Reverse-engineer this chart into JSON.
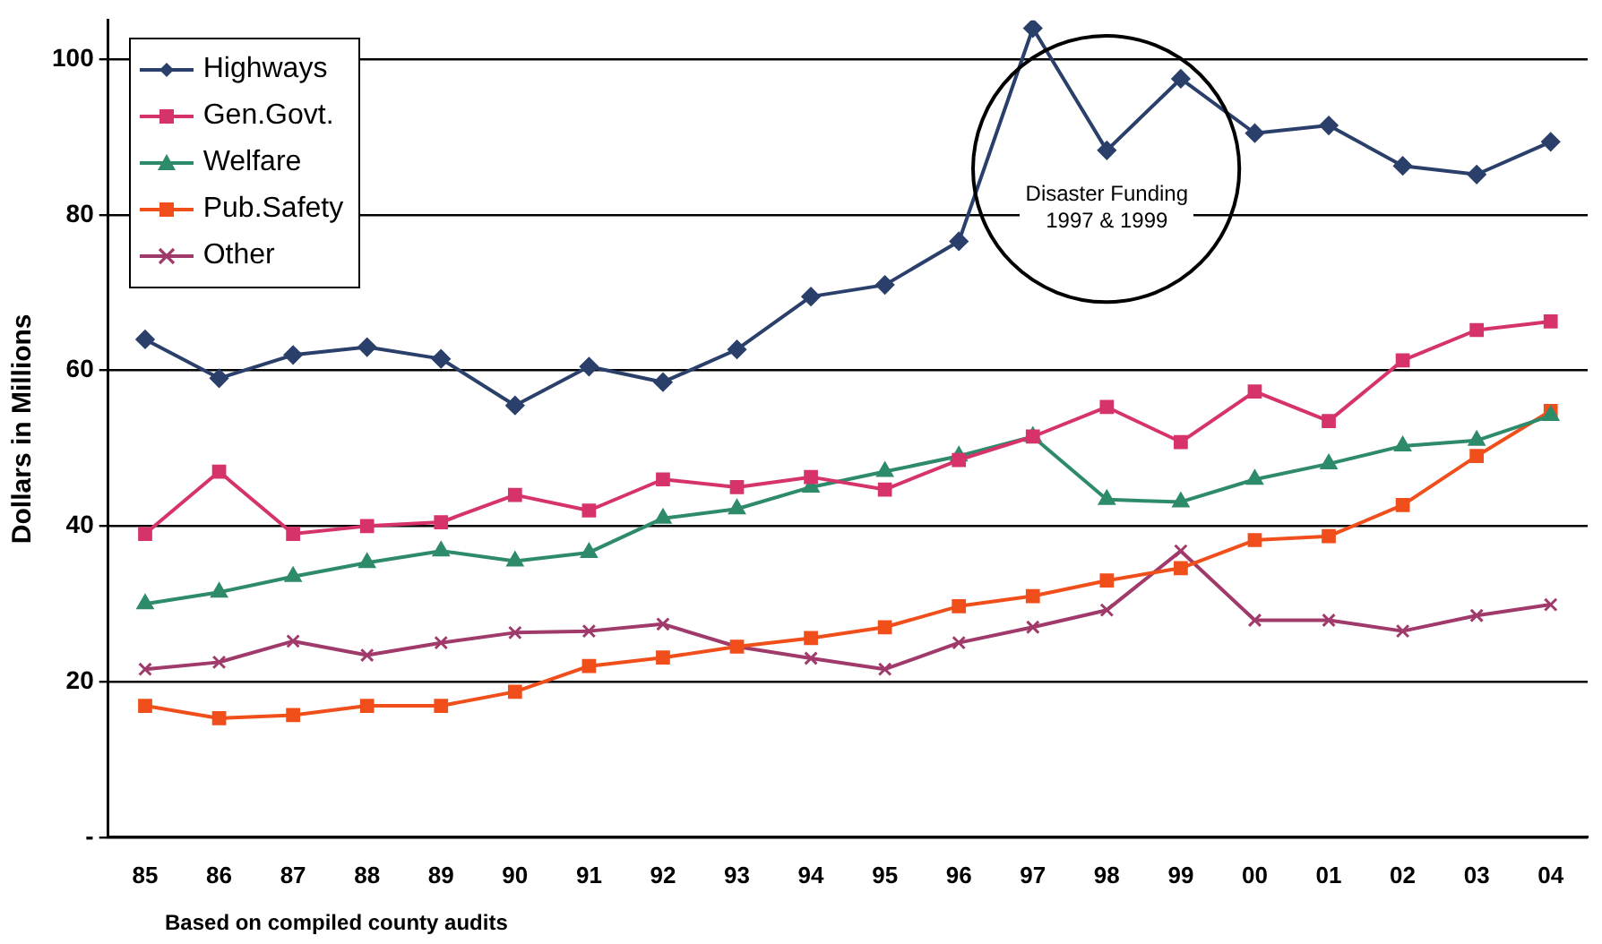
{
  "chart_data": {
    "type": "line",
    "categories": [
      "85",
      "86",
      "87",
      "88",
      "89",
      "90",
      "91",
      "92",
      "93",
      "94",
      "95",
      "96",
      "97",
      "98",
      "99",
      "00",
      "01",
      "02",
      "03",
      "04"
    ],
    "ylabel": "Dollars in Millions",
    "ylim": [
      0,
      105
    ],
    "yticks": [
      {
        "value": 0,
        "label": "-"
      },
      20,
      40,
      60,
      80,
      100
    ],
    "grid": "y",
    "legend": "top left",
    "line_style": "solid",
    "annotations": [
      "Disaster Funding\n1997 & 1999",
      "Based on compiled county audits"
    ],
    "series": [
      {
        "name": "Highways",
        "color": "#2b3f6b",
        "marker": "diamond",
        "values": [
          64,
          59,
          62,
          63,
          61.5,
          55.5,
          60.5,
          58.5,
          62.7,
          69.5,
          71,
          76.6,
          104,
          88.3,
          97.5,
          90.5,
          91.5,
          86.3,
          85.2,
          89.4
        ]
      },
      {
        "name": "Gen.Govt.",
        "color": "#d6336b",
        "marker": "square",
        "values": [
          39,
          47,
          39,
          40,
          40.5,
          44,
          42,
          46,
          45,
          46.3,
          44.7,
          48.5,
          51.5,
          55.3,
          50.8,
          57.3,
          53.5,
          61.3,
          65.2,
          66.3
        ]
      },
      {
        "name": "Welfare",
        "color": "#2e8b6a",
        "marker": "triangle",
        "values": [
          30,
          31.5,
          33.5,
          35.3,
          36.8,
          35.5,
          36.6,
          41,
          42.2,
          45,
          47,
          49,
          51.5,
          43.4,
          43.1,
          46,
          48,
          50.3,
          51,
          54.2
        ]
      },
      {
        "name": "Pub.Safety",
        "color": "#f04e1a",
        "marker": "square",
        "values": [
          16.9,
          15.3,
          15.7,
          16.9,
          16.9,
          18.7,
          22,
          23.1,
          24.5,
          25.6,
          27,
          29.7,
          31,
          33,
          34.6,
          38.2,
          38.7,
          42.7,
          49,
          54.8
        ]
      },
      {
        "name": "Other",
        "color": "#a03a6b",
        "marker": "cross",
        "values": [
          21.6,
          22.5,
          25.2,
          23.4,
          25,
          26.3,
          26.5,
          27.4,
          24.5,
          23,
          21.6,
          25,
          27,
          29.2,
          36.8,
          27.9,
          27.9,
          26.5,
          28.5,
          29.9
        ]
      }
    ]
  }
}
